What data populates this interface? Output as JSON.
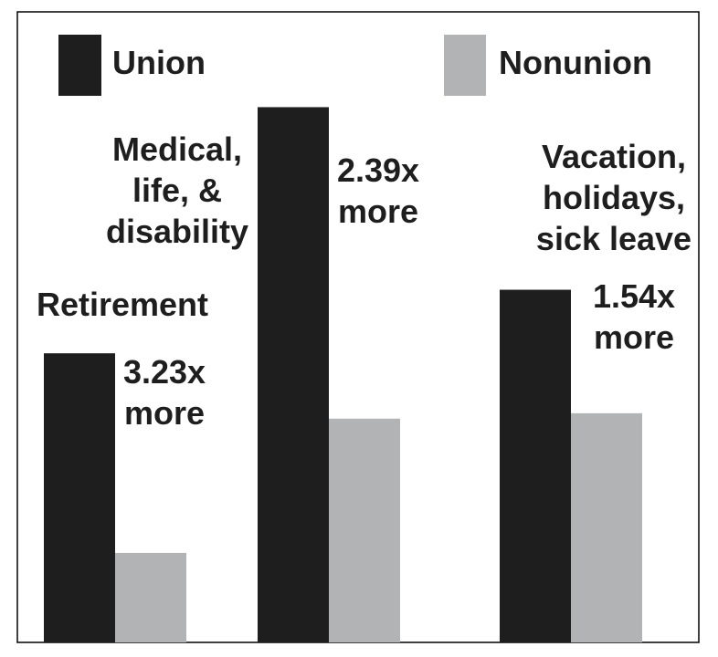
{
  "chart_data": {
    "type": "bar",
    "categories": [
      "Retirement",
      "Medical, life, & disability",
      "Vacation, holidays, sick leave"
    ],
    "category_label_lines": [
      [
        "Retirement"
      ],
      [
        "Medical,",
        "life, &",
        "disability"
      ],
      [
        "Vacation,",
        "holidays,",
        "sick leave"
      ]
    ],
    "series": [
      {
        "name": "Union",
        "values": [
          3.23,
          5.98,
          3.94
        ]
      },
      {
        "name": "Nonunion",
        "values": [
          1.0,
          2.5,
          2.56
        ]
      }
    ],
    "ratio_labels": [
      [
        "3.23x",
        "more"
      ],
      [
        "2.39x",
        "more"
      ],
      [
        "1.54x",
        "more"
      ]
    ],
    "legend": {
      "position": "top",
      "items": [
        "Union",
        "Nonunion"
      ]
    },
    "ylim": [
      0,
      6.28
    ],
    "axes_visible": false,
    "grid": false,
    "colors": {
      "union": "#1e1e1e",
      "nonunion": "#b2b3b5",
      "frame": "#000000"
    }
  }
}
